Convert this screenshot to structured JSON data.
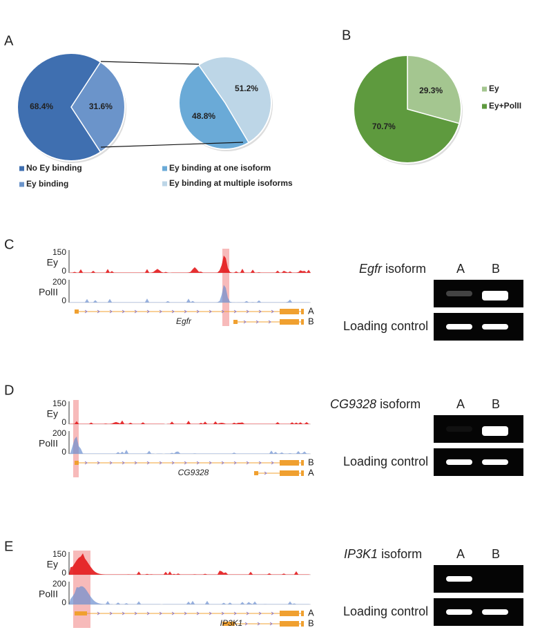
{
  "chart_data": [
    {
      "type": "pie",
      "label": "A",
      "categories": [
        "No Ey binding",
        "Ey binding"
      ],
      "values": [
        68.4,
        31.6
      ],
      "value_labels": [
        "68.4%",
        "31.6%"
      ],
      "colors": [
        "#3f6fb0",
        "#6b94ca"
      ]
    },
    {
      "type": "pie",
      "categories": [
        "Ey binding at one isoform",
        "Ey binding at multiple isoforms"
      ],
      "values": [
        48.8,
        51.2
      ],
      "value_labels": [
        "48.8%",
        "51.2%"
      ],
      "colors": [
        "#6aaad7",
        "#bdd6e7"
      ]
    },
    {
      "type": "pie",
      "label": "B",
      "categories": [
        "Ey",
        "Ey+PolII"
      ],
      "values": [
        29.3,
        70.7
      ],
      "value_labels": [
        "29.3%",
        "70.7%"
      ],
      "colors": [
        "#a4c690",
        "#5e9a3e"
      ]
    }
  ],
  "panels": [
    {
      "label": "C",
      "tracks": [
        {
          "name": "Ey",
          "max": 150,
          "min": 0
        },
        {
          "name": "PolII",
          "max": 200,
          "min": 0
        }
      ],
      "gene": "Egfr",
      "isoforms": [
        "A",
        "B"
      ],
      "gel_gene": "Egfr",
      "gel_suffix": "isoform",
      "lanes": [
        "A",
        "B"
      ],
      "control": "Loading control"
    },
    {
      "label": "D",
      "tracks": [
        {
          "name": "Ey",
          "max": 150,
          "min": 0
        },
        {
          "name": "PolII",
          "max": 200,
          "min": 0
        }
      ],
      "gene": "CG9328",
      "isoforms": [
        "B",
        "A"
      ],
      "gel_gene": "CG9328",
      "gel_suffix": "isoform",
      "lanes": [
        "A",
        "B"
      ],
      "control": "Loading control"
    },
    {
      "label": "E",
      "tracks": [
        {
          "name": "Ey",
          "max": 150,
          "min": 0
        },
        {
          "name": "PolII",
          "max": 200,
          "min": 0
        }
      ],
      "gene": "IP3K1",
      "isoforms": [
        "A",
        "B"
      ],
      "gel_gene": "IP3K1",
      "gel_suffix": "isoform",
      "lanes": [
        "A",
        "B"
      ],
      "control": "Loading control"
    }
  ]
}
